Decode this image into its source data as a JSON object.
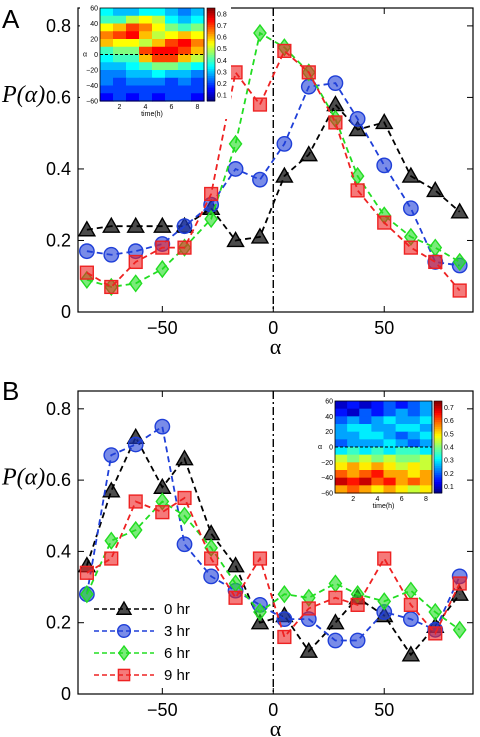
{
  "chart_data": [
    {
      "type": "line",
      "panel_label": "A",
      "xlabel": "α",
      "ylabel": "P(α)",
      "xlim": [
        -88,
        90
      ],
      "ylim": [
        0,
        0.85
      ],
      "xticks": [
        -50,
        0,
        50
      ],
      "yticks": [
        0,
        0.2,
        0.4,
        0.6,
        0.8
      ],
      "vertical_line_at": 0,
      "grid": false,
      "series": [
        {
          "name": "0 hr",
          "color": "#000000",
          "marker": "triangle",
          "x": [
            -84,
            -73,
            -62,
            -50,
            -40,
            -28,
            -17,
            -6,
            5,
            16,
            28,
            38,
            50,
            62,
            73,
            84
          ],
          "y": [
            0.23,
            0.24,
            0.24,
            0.24,
            0.24,
            0.29,
            0.2,
            0.21,
            0.38,
            0.44,
            0.58,
            0.51,
            0.53,
            0.38,
            0.34,
            0.28
          ]
        },
        {
          "name": "3 hr",
          "color": "#1f3fd8",
          "marker": "circle",
          "x": [
            -84,
            -73,
            -62,
            -50,
            -40,
            -28,
            -17,
            -6,
            5,
            16,
            28,
            38,
            50,
            62,
            73,
            84
          ],
          "y": [
            0.17,
            0.16,
            0.17,
            0.19,
            0.24,
            0.3,
            0.4,
            0.37,
            0.47,
            0.63,
            0.64,
            0.54,
            0.41,
            0.29,
            0.14,
            0.13
          ]
        },
        {
          "name": "6 hr",
          "color": "#22dd22",
          "marker": "diamond",
          "x": [
            -84,
            -73,
            -62,
            -50,
            -40,
            -28,
            -17,
            -6,
            5,
            16,
            28,
            38,
            50,
            62,
            73,
            84
          ],
          "y": [
            0.09,
            0.07,
            0.08,
            0.12,
            0.18,
            0.26,
            0.47,
            0.78,
            0.74,
            0.67,
            0.54,
            0.38,
            0.27,
            0.21,
            0.18,
            0.14
          ]
        },
        {
          "name": "9 hr",
          "color": "#ee2222",
          "marker": "square",
          "x": [
            -84,
            -73,
            -62,
            -50,
            -40,
            -28,
            -17,
            -6,
            5,
            16,
            28,
            38,
            50,
            62,
            73,
            84
          ],
          "y": [
            0.11,
            0.07,
            0.14,
            0.18,
            0.18,
            0.33,
            0.67,
            0.58,
            0.73,
            0.67,
            0.53,
            0.34,
            0.25,
            0.18,
            0.14,
            0.06
          ]
        }
      ],
      "inset": {
        "type": "heatmap",
        "xlabel": "time(h)",
        "ylabel": "α",
        "xticks": [
          2,
          4,
          6,
          8
        ],
        "yticks": [
          -60,
          -40,
          -20,
          0,
          20,
          40,
          60
        ],
        "colorbar_ticks": [
          0.1,
          0.2,
          0.3,
          0.4,
          0.5,
          0.6,
          0.7,
          0.8
        ],
        "colorbar_range": [
          0.05,
          0.85
        ],
        "x_range": [
          0.5,
          8.5
        ],
        "y_range": [
          -60,
          60
        ],
        "dashed_line_at": 0,
        "grid_x": [
          1,
          2,
          3,
          4,
          5,
          6,
          7,
          8
        ],
        "grid_y": [
          55,
          45,
          35,
          25,
          15,
          5,
          -5,
          -15,
          -25,
          -35,
          -45,
          -55
        ],
        "values": [
          [
            0.35,
            0.3,
            0.3,
            0.35,
            0.35,
            0.3,
            0.25,
            0.3
          ],
          [
            0.4,
            0.4,
            0.5,
            0.55,
            0.5,
            0.35,
            0.3,
            0.35
          ],
          [
            0.55,
            0.6,
            0.7,
            0.65,
            0.55,
            0.45,
            0.4,
            0.45
          ],
          [
            0.65,
            0.7,
            0.75,
            0.6,
            0.5,
            0.55,
            0.6,
            0.55
          ],
          [
            0.6,
            0.55,
            0.55,
            0.5,
            0.6,
            0.7,
            0.75,
            0.65
          ],
          [
            0.4,
            0.45,
            0.45,
            0.7,
            0.75,
            0.75,
            0.7,
            0.6
          ],
          [
            0.35,
            0.4,
            0.4,
            0.6,
            0.7,
            0.7,
            0.6,
            0.5
          ],
          [
            0.3,
            0.3,
            0.35,
            0.4,
            0.45,
            0.45,
            0.4,
            0.35
          ],
          [
            0.25,
            0.25,
            0.3,
            0.3,
            0.35,
            0.3,
            0.3,
            0.25
          ],
          [
            0.25,
            0.2,
            0.25,
            0.25,
            0.25,
            0.2,
            0.25,
            0.2
          ],
          [
            0.2,
            0.2,
            0.2,
            0.2,
            0.2,
            0.2,
            0.2,
            0.2
          ],
          [
            0.15,
            0.2,
            0.15,
            0.2,
            0.15,
            0.2,
            0.2,
            0.15
          ]
        ]
      }
    },
    {
      "type": "line",
      "panel_label": "B",
      "xlabel": "α",
      "ylabel": "P(α)",
      "xlim": [
        -88,
        90
      ],
      "ylim": [
        0,
        0.85
      ],
      "xticks": [
        -50,
        0,
        50
      ],
      "yticks": [
        0,
        0.2,
        0.4,
        0.6,
        0.8
      ],
      "vertical_line_at": 0,
      "grid": false,
      "legend_position": "bottom-left",
      "series": [
        {
          "name": "0 hr",
          "color": "#000000",
          "marker": "triangle",
          "x": [
            -84,
            -73,
            -62,
            -50,
            -40,
            -28,
            -17,
            -6,
            5,
            16,
            28,
            38,
            50,
            62,
            73,
            84
          ],
          "y": [
            0.36,
            0.57,
            0.72,
            0.58,
            0.66,
            0.45,
            0.36,
            0.2,
            0.22,
            0.12,
            0.2,
            0.27,
            0.22,
            0.11,
            0.19,
            0.28
          ]
        },
        {
          "name": "3 hr",
          "color": "#1f3fd8",
          "marker": "circle",
          "x": [
            -84,
            -73,
            -62,
            -50,
            -40,
            -28,
            -17,
            -6,
            5,
            16,
            28,
            38,
            50,
            62,
            73,
            84
          ],
          "y": [
            0.28,
            0.67,
            0.7,
            0.75,
            0.42,
            0.33,
            0.29,
            0.25,
            0.21,
            0.21,
            0.15,
            0.15,
            0.23,
            0.21,
            0.18,
            0.33
          ]
        },
        {
          "name": "6 hr",
          "color": "#22dd22",
          "marker": "diamond",
          "x": [
            -84,
            -73,
            -62,
            -50,
            -40,
            -28,
            -17,
            -6,
            5,
            16,
            28,
            38,
            50,
            62,
            73,
            84
          ],
          "y": [
            0.28,
            0.43,
            0.46,
            0.54,
            0.5,
            0.41,
            0.31,
            0.23,
            0.28,
            0.27,
            0.31,
            0.28,
            0.26,
            0.29,
            0.23,
            0.18
          ]
        },
        {
          "name": "9 hr",
          "color": "#ee2222",
          "marker": "square",
          "x": [
            -84,
            -73,
            -62,
            -50,
            -40,
            -28,
            -17,
            -6,
            5,
            16,
            28,
            38,
            50,
            62,
            73,
            84
          ],
          "y": [
            0.34,
            0.38,
            0.54,
            0.51,
            0.55,
            0.38,
            0.27,
            0.38,
            0.16,
            0.24,
            0.27,
            0.25,
            0.38,
            0.25,
            0.17,
            0.31
          ]
        }
      ],
      "legend": [
        "0 hr",
        "3 hr",
        "6 hr",
        "9 hr"
      ],
      "inset": {
        "type": "heatmap",
        "xlabel": "time(h)",
        "ylabel": "α",
        "xticks": [
          2,
          4,
          6,
          8
        ],
        "yticks": [
          -60,
          -40,
          -20,
          0,
          20,
          40,
          60
        ],
        "colorbar_ticks": [
          0.1,
          0.2,
          0.3,
          0.4,
          0.5,
          0.6,
          0.7
        ],
        "colorbar_range": [
          0.05,
          0.75
        ],
        "x_range": [
          0.5,
          8.5
        ],
        "y_range": [
          -60,
          60
        ],
        "dashed_line_at": 0,
        "grid_x": [
          1,
          2,
          3,
          4,
          5,
          6,
          7,
          8
        ],
        "grid_y": [
          55,
          45,
          35,
          25,
          15,
          5,
          -5,
          -15,
          -25,
          -35,
          -45,
          -55
        ],
        "values": [
          [
            0.1,
            0.15,
            0.1,
            0.15,
            0.2,
            0.15,
            0.2,
            0.25
          ],
          [
            0.15,
            0.1,
            0.2,
            0.15,
            0.2,
            0.25,
            0.2,
            0.25
          ],
          [
            0.2,
            0.25,
            0.2,
            0.25,
            0.3,
            0.25,
            0.25,
            0.3
          ],
          [
            0.25,
            0.3,
            0.3,
            0.25,
            0.25,
            0.3,
            0.3,
            0.25
          ],
          [
            0.25,
            0.25,
            0.3,
            0.3,
            0.25,
            0.2,
            0.25,
            0.3
          ],
          [
            0.2,
            0.25,
            0.25,
            0.25,
            0.3,
            0.25,
            0.2,
            0.25
          ],
          [
            0.3,
            0.35,
            0.3,
            0.35,
            0.3,
            0.35,
            0.35,
            0.3
          ],
          [
            0.45,
            0.4,
            0.45,
            0.4,
            0.45,
            0.4,
            0.4,
            0.45
          ],
          [
            0.5,
            0.55,
            0.5,
            0.55,
            0.5,
            0.45,
            0.5,
            0.45
          ],
          [
            0.6,
            0.55,
            0.6,
            0.65,
            0.55,
            0.55,
            0.5,
            0.55
          ],
          [
            0.7,
            0.65,
            0.7,
            0.6,
            0.65,
            0.55,
            0.6,
            0.55
          ],
          [
            0.55,
            0.6,
            0.55,
            0.5,
            0.55,
            0.5,
            0.45,
            0.5
          ]
        ]
      }
    }
  ]
}
